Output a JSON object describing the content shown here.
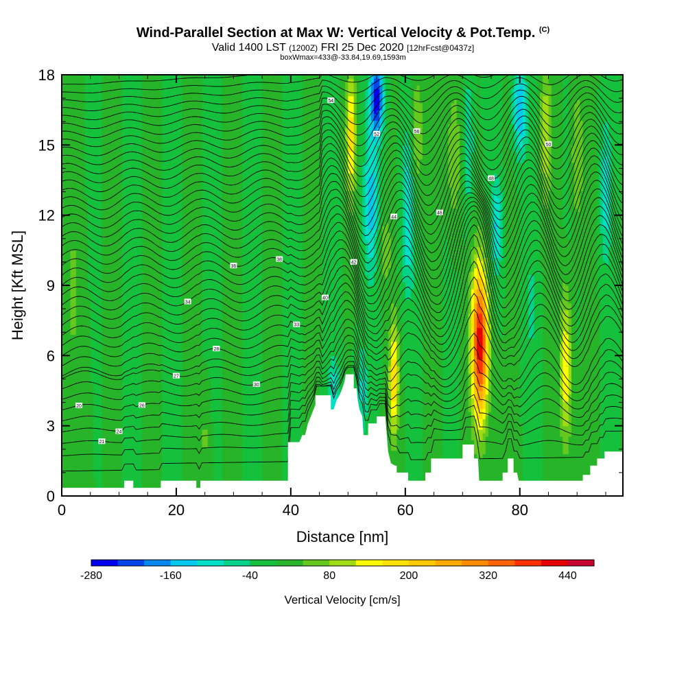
{
  "header": {
    "title_main": "Wind-Parallel Section at Max W: Vertical Velocity & Pot.Temp.",
    "title_mark": "(C)",
    "valid_prefix": "Valid 1400 LST",
    "valid_utc": "(1200Z)",
    "valid_date": "FRI 25 Dec 2020",
    "valid_fcst": "[12hrFcst@0437z]",
    "box_info": "boxWmax=433@-33.84,19.69,1593m"
  },
  "chart_data": {
    "type": "heatmap",
    "xlabel": "Distance [nm]",
    "ylabel": "Height [Kft MSL]",
    "xlim": [
      0,
      98
    ],
    "ylim": [
      0,
      18
    ],
    "xticks": [
      0,
      20,
      40,
      60,
      80
    ],
    "yticks": [
      0,
      3,
      6,
      9,
      12,
      15,
      18
    ],
    "colorbar": {
      "title": "Vertical Velocity [cm/s]",
      "levels": [
        -280,
        -240,
        -200,
        -160,
        -120,
        -80,
        -40,
        0,
        40,
        80,
        120,
        160,
        200,
        240,
        280,
        320,
        360,
        400,
        440,
        480
      ],
      "tick_labels": [
        "-280",
        "-160",
        "-40",
        "80",
        "200",
        "320",
        "440"
      ],
      "tick_values": [
        -280,
        -160,
        -40,
        80,
        200,
        320,
        440
      ],
      "colors": [
        "#0000ee",
        "#0044ee",
        "#0088ee",
        "#00c8ee",
        "#00e0c8",
        "#00d28c",
        "#14c03c",
        "#28b428",
        "#64c81e",
        "#a0dc14",
        "#ffff00",
        "#ffe100",
        "#ffc800",
        "#ffaa00",
        "#ff8c00",
        "#ff6400",
        "#ff3200",
        "#e60000",
        "#c80032"
      ]
    },
    "background_w": 0,
    "features": [
      {
        "kind": "updraft",
        "x": 73,
        "y": 6.5,
        "w_max": 433,
        "half_width_nm": 1.4,
        "half_height_kft": 3.2
      },
      {
        "kind": "updraft",
        "x": 88,
        "y": 5.5,
        "w_max": 160,
        "half_width_nm": 1.0,
        "half_height_kft": 3.2
      },
      {
        "kind": "updraft",
        "x": 58,
        "y": 5.0,
        "w_max": 200,
        "half_width_nm": 0.8,
        "half_height_kft": 2.5
      },
      {
        "kind": "updraft",
        "x": 50.5,
        "y": 15.5,
        "w_max": 180,
        "half_width_nm": 0.8,
        "half_height_kft": 2.6
      },
      {
        "kind": "updraft",
        "x": 68.5,
        "y": 14.5,
        "w_max": 90,
        "half_width_nm": 1.2,
        "half_height_kft": 3.0
      },
      {
        "kind": "updraft",
        "x": 84.5,
        "y": 15.5,
        "w_max": 110,
        "half_width_nm": 0.9,
        "half_height_kft": 3.0
      },
      {
        "kind": "updraft",
        "x": 62,
        "y": 15.5,
        "w_max": 90,
        "half_width_nm": 1.0,
        "half_height_kft": 2.6
      },
      {
        "kind": "updraft",
        "x": 90,
        "y": 14.5,
        "w_max": 90,
        "half_width_nm": 1.0,
        "half_height_kft": 3.0
      },
      {
        "kind": "updraft",
        "x": 56.5,
        "y": 10.5,
        "w_max": 70,
        "half_width_nm": 1.0,
        "half_height_kft": 1.5
      },
      {
        "kind": "updraft",
        "x": 25,
        "y": 2.5,
        "w_max": 55,
        "half_width_nm": 0.5,
        "half_height_kft": 1.4
      },
      {
        "kind": "updraft",
        "x": 2,
        "y": 8.5,
        "w_max": 45,
        "half_width_nm": 1.5,
        "half_height_kft": 5.0
      },
      {
        "kind": "downdraft",
        "x": 55,
        "y": 17,
        "w_max": -260,
        "half_width_nm": 1.2,
        "half_height_kft": 1.6
      },
      {
        "kind": "downdraft",
        "x": 54,
        "y": 12.5,
        "w_max": -130,
        "half_width_nm": 1.3,
        "half_height_kft": 3.0
      },
      {
        "kind": "downdraft",
        "x": 60.5,
        "y": 12,
        "w_max": -110,
        "half_width_nm": 1.2,
        "half_height_kft": 3.5
      },
      {
        "kind": "downdraft",
        "x": 80,
        "y": 16.5,
        "w_max": -160,
        "half_width_nm": 1.2,
        "half_height_kft": 2.0
      },
      {
        "kind": "downdraft",
        "x": 76,
        "y": 11.5,
        "w_max": -120,
        "half_width_nm": 1.0,
        "half_height_kft": 2.0
      },
      {
        "kind": "downdraft",
        "x": 71,
        "y": 15,
        "w_max": -90,
        "half_width_nm": 1.0,
        "half_height_kft": 3.0
      },
      {
        "kind": "downdraft",
        "x": 47.5,
        "y": 4.5,
        "w_max": -110,
        "half_width_nm": 1.0,
        "half_height_kft": 1.5
      },
      {
        "kind": "downdraft",
        "x": 52.5,
        "y": 4.5,
        "w_max": -90,
        "half_width_nm": 1.0,
        "half_height_kft": 2.0
      },
      {
        "kind": "downdraft",
        "x": 95,
        "y": 13,
        "w_max": -100,
        "half_width_nm": 1.0,
        "half_height_kft": 3.0
      },
      {
        "kind": "downdraft",
        "x": 82,
        "y": 8,
        "w_max": -60,
        "half_width_nm": 1.0,
        "half_height_kft": 2.0
      }
    ],
    "terrain": [
      [
        0,
        0.35
      ],
      [
        10.9,
        0.35
      ],
      [
        10.9,
        0.65
      ],
      [
        12.5,
        0.65
      ],
      [
        12.5,
        0.35
      ],
      [
        17.3,
        0.35
      ],
      [
        17.3,
        0.65
      ],
      [
        23.5,
        0.65
      ],
      [
        23.5,
        0.35
      ],
      [
        24.2,
        0.35
      ],
      [
        24.2,
        0.65
      ],
      [
        39.5,
        0.65
      ],
      [
        39.5,
        2.3
      ],
      [
        41,
        2.3
      ],
      [
        41.5,
        2.3
      ],
      [
        42,
        2.6
      ],
      [
        42.5,
        2.6
      ],
      [
        43,
        3.1
      ],
      [
        43.5,
        3.4
      ],
      [
        44.3,
        3.9
      ],
      [
        44.3,
        4.3
      ],
      [
        46.6,
        4.3
      ],
      [
        47,
        4.3
      ],
      [
        47,
        3.7
      ],
      [
        47.5,
        3.7
      ],
      [
        48,
        4.1
      ],
      [
        48.5,
        4.3
      ],
      [
        49,
        4.6
      ],
      [
        49.4,
        4.9
      ],
      [
        49.6,
        5.2
      ],
      [
        51,
        5.2
      ],
      [
        51,
        4.6
      ],
      [
        51.5,
        4.6
      ],
      [
        51.7,
        4.1
      ],
      [
        52,
        3.7
      ],
      [
        52.5,
        3.4
      ],
      [
        52.7,
        2.6
      ],
      [
        53.5,
        2.6
      ],
      [
        53.5,
        3.1
      ],
      [
        55,
        3.1
      ],
      [
        55,
        3.4
      ],
      [
        56.5,
        3.4
      ],
      [
        57,
        1.9
      ],
      [
        57.5,
        1.4
      ],
      [
        58.2,
        1.3
      ],
      [
        58.5,
        1.3
      ],
      [
        58.5,
        1.0
      ],
      [
        60.5,
        1.0
      ],
      [
        60.5,
        0.65
      ],
      [
        63.5,
        0.65
      ],
      [
        63.5,
        1.0
      ],
      [
        64.5,
        1.0
      ],
      [
        64.5,
        1.6
      ],
      [
        70,
        1.6
      ],
      [
        70,
        2.2
      ],
      [
        72,
        2.2
      ],
      [
        72,
        1.6
      ],
      [
        72.7,
        1.6
      ],
      [
        72.9,
        0.65
      ],
      [
        77,
        0.65
      ],
      [
        77,
        1.0
      ],
      [
        77.9,
        1.0
      ],
      [
        77.9,
        1.6
      ],
      [
        78.9,
        1.6
      ],
      [
        78.9,
        1.0
      ],
      [
        79.5,
        1.0
      ],
      [
        79.8,
        0.65
      ],
      [
        91,
        0.65
      ],
      [
        91,
        0.9
      ],
      [
        92.3,
        0.9
      ],
      [
        92.3,
        1.3
      ],
      [
        93.5,
        1.3
      ],
      [
        93.5,
        1.6
      ],
      [
        94.8,
        1.6
      ],
      [
        94.8,
        1.9
      ],
      [
        98,
        1.9
      ]
    ],
    "theta_contours": {
      "units": "C",
      "interval": 1,
      "base_low": 18,
      "levels_count": 42,
      "label_values": [
        "20",
        "21",
        "24",
        "26",
        "27",
        "28",
        "30",
        "33",
        "34",
        "36",
        "38",
        "40",
        "42",
        "44",
        "46",
        "48",
        "50",
        "52",
        "54",
        "56"
      ]
    }
  }
}
